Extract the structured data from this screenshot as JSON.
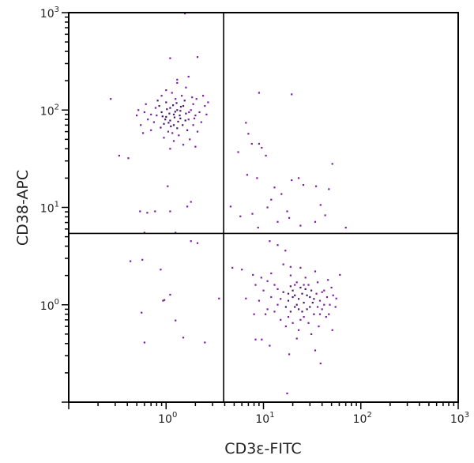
{
  "chart_data": {
    "type": "scatter",
    "title": "",
    "xlabel": "CD3ε-FITC",
    "ylabel": "CD38-APC",
    "xscale": "log",
    "yscale": "log",
    "xlim": [
      0.1,
      1000
    ],
    "ylim": [
      0.1,
      1000
    ],
    "x_ticks": [
      {
        "base": "10",
        "exp": "0",
        "value": 1
      },
      {
        "base": "10",
        "exp": "1",
        "value": 10
      },
      {
        "base": "10",
        "exp": "2",
        "value": 100
      },
      {
        "base": "10",
        "exp": "3",
        "value": 1000
      }
    ],
    "y_ticks": [
      {
        "base": "10",
        "exp": "0",
        "value": 1
      },
      {
        "base": "10",
        "exp": "1",
        "value": 10
      },
      {
        "base": "10",
        "exp": "2",
        "value": 100
      },
      {
        "base": "10",
        "exp": "3",
        "value": 1000
      }
    ],
    "grid": false,
    "point_color": "#7b1fa2",
    "dense_point_color": "#4a1670",
    "quadrant_gates": {
      "x": 3.9,
      "y": 5.4
    },
    "points": [
      [
        1.0,
        85
      ],
      [
        1.2,
        90
      ],
      [
        1.1,
        78
      ],
      [
        1.3,
        100
      ],
      [
        0.9,
        95
      ],
      [
        1.4,
        82
      ],
      [
        1.5,
        110
      ],
      [
        1.2,
        70
      ],
      [
        1.0,
        120
      ],
      [
        0.8,
        88
      ],
      [
        1.6,
        92
      ],
      [
        1.3,
        65
      ],
      [
        1.1,
        105
      ],
      [
        0.95,
        72
      ],
      [
        1.25,
        130
      ],
      [
        1.7,
        80
      ],
      [
        0.7,
        90
      ],
      [
        0.75,
        75
      ],
      [
        1.8,
        100
      ],
      [
        2.0,
        88
      ],
      [
        2.2,
        95
      ],
      [
        2.5,
        110
      ],
      [
        1.9,
        70
      ],
      [
        1.05,
        60
      ],
      [
        1.35,
        55
      ],
      [
        0.85,
        110
      ],
      [
        0.65,
        80
      ],
      [
        0.6,
        95
      ],
      [
        1.45,
        140
      ],
      [
        1.15,
        150
      ],
      [
        1.0,
        160
      ],
      [
        1.6,
        170
      ],
      [
        1.3,
        190
      ],
      [
        0.9,
        140
      ],
      [
        2.4,
        140
      ],
      [
        2.7,
        120
      ],
      [
        2.3,
        75
      ],
      [
        2.1,
        60
      ],
      [
        1.75,
        50
      ],
      [
        1.2,
        48
      ],
      [
        0.95,
        52
      ],
      [
        0.7,
        62
      ],
      [
        0.55,
        70
      ],
      [
        0.5,
        88
      ],
      [
        0.52,
        100
      ],
      [
        0.62,
        115
      ],
      [
        1.55,
        125
      ],
      [
        1.4,
        98
      ],
      [
        1.22,
        84
      ],
      [
        1.08,
        92
      ],
      [
        0.98,
        80
      ],
      [
        1.33,
        76
      ],
      [
        1.18,
        112
      ],
      [
        1.48,
        70
      ],
      [
        1.65,
        62
      ],
      [
        0.88,
        66
      ],
      [
        0.78,
        105
      ],
      [
        1.9,
        115
      ],
      [
        2.05,
        130
      ],
      [
        1.28,
        118
      ],
      [
        1.12,
        68
      ],
      [
        1.38,
        88
      ],
      [
        1.02,
        102
      ],
      [
        0.92,
        86
      ],
      [
        1.58,
        78
      ],
      [
        1.72,
        95
      ],
      [
        1.24,
        96
      ],
      [
        1.06,
        74
      ],
      [
        1.42,
        108
      ],
      [
        1.16,
        58
      ],
      [
        1.85,
        135
      ],
      [
        2.6,
        90
      ],
      [
        0.58,
        58
      ],
      [
        1.5,
        44
      ],
      [
        1.1,
        40
      ],
      [
        2.0,
        42
      ],
      [
        1.3,
        205
      ],
      [
        1.7,
        220
      ],
      [
        0.82,
        125
      ],
      [
        1.95,
        82
      ],
      [
        20,
        1.2
      ],
      [
        22,
        1.0
      ],
      [
        25,
        1.3
      ],
      [
        18,
        1.1
      ],
      [
        28,
        0.9
      ],
      [
        30,
        1.2
      ],
      [
        24,
        1.5
      ],
      [
        19,
        0.85
      ],
      [
        21,
        1.6
      ],
      [
        26,
        0.75
      ],
      [
        32,
        1.05
      ],
      [
        35,
        1.3
      ],
      [
        16,
        1.35
      ],
      [
        14,
        1.0
      ],
      [
        12,
        1.2
      ],
      [
        11,
        0.9
      ],
      [
        15,
        0.7
      ],
      [
        17,
        0.6
      ],
      [
        23,
        0.55
      ],
      [
        29,
        0.65
      ],
      [
        33,
        0.8
      ],
      [
        38,
        1.1
      ],
      [
        40,
        0.9
      ],
      [
        42,
        1.4
      ],
      [
        45,
        1.2
      ],
      [
        36,
        1.7
      ],
      [
        27,
        1.9
      ],
      [
        19,
        2.0
      ],
      [
        13,
        1.6
      ],
      [
        10,
        1.4
      ],
      [
        9,
        1.1
      ],
      [
        10.5,
        0.8
      ],
      [
        22,
        0.45
      ],
      [
        31,
        0.5
      ],
      [
        37,
        0.6
      ],
      [
        44,
        0.75
      ],
      [
        48,
        1.0
      ],
      [
        50,
        1.5
      ],
      [
        46,
        1.8
      ],
      [
        34,
        2.2
      ],
      [
        24,
        2.4
      ],
      [
        16,
        2.6
      ],
      [
        12,
        2.1
      ],
      [
        20,
        1.4
      ],
      [
        23,
        1.15
      ],
      [
        26,
        1.05
      ],
      [
        21,
        0.95
      ],
      [
        18,
        1.3
      ],
      [
        25,
        0.85
      ],
      [
        28,
        1.25
      ],
      [
        30,
        0.95
      ],
      [
        19,
        1.55
      ],
      [
        22,
        1.7
      ],
      [
        27,
        1.45
      ],
      [
        17,
        0.95
      ],
      [
        15,
        1.15
      ],
      [
        33,
        1.15
      ],
      [
        36,
        0.95
      ],
      [
        24,
        0.7
      ],
      [
        20,
        0.65
      ],
      [
        13,
        0.85
      ],
      [
        40,
        1.35
      ],
      [
        29,
        1.6
      ],
      [
        21,
        1.25
      ],
      [
        23,
        0.9
      ],
      [
        26,
        1.6
      ],
      [
        31,
        1.4
      ],
      [
        18,
        0.75
      ],
      [
        14,
        1.45
      ],
      [
        38,
        0.8
      ],
      [
        42,
        1.0
      ],
      [
        11,
        1.75
      ],
      [
        9.5,
        1.9
      ],
      [
        52,
        1.25
      ],
      [
        55,
        0.95
      ],
      [
        1.56,
        980
      ],
      [
        0.27,
        130
      ],
      [
        1.1,
        340
      ],
      [
        2.1,
        350
      ],
      [
        0.33,
        34
      ],
      [
        0.41,
        32
      ],
      [
        0.54,
        9.1
      ],
      [
        0.64,
        8.8
      ],
      [
        0.77,
        9.1
      ],
      [
        1.04,
        16.5
      ],
      [
        1.1,
        9.1
      ],
      [
        1.65,
        10.2
      ],
      [
        1.8,
        11.4
      ],
      [
        0.6,
        5.5
      ],
      [
        1.25,
        5.5
      ],
      [
        1.8,
        4.5
      ],
      [
        2.1,
        4.3
      ],
      [
        0.57,
        2.9
      ],
      [
        0.43,
        2.8
      ],
      [
        0.88,
        2.3
      ],
      [
        0.96,
        1.12
      ],
      [
        1.1,
        1.27
      ],
      [
        0.56,
        0.83
      ],
      [
        0.93,
        1.1
      ],
      [
        1.25,
        0.69
      ],
      [
        1.5,
        0.46
      ],
      [
        0.6,
        0.41
      ],
      [
        2.5,
        0.41
      ],
      [
        3.5,
        1.16
      ],
      [
        9,
        150
      ],
      [
        19.5,
        145
      ],
      [
        6.6,
        74
      ],
      [
        7,
        57
      ],
      [
        7.6,
        45
      ],
      [
        9,
        45
      ],
      [
        9.6,
        41
      ],
      [
        5.5,
        37
      ],
      [
        10.6,
        34
      ],
      [
        6.8,
        21.6
      ],
      [
        8.6,
        20
      ],
      [
        13,
        16
      ],
      [
        12,
        12
      ],
      [
        15.3,
        13.7
      ],
      [
        19.5,
        19
      ],
      [
        23,
        20
      ],
      [
        25.7,
        17
      ],
      [
        34.7,
        16.5
      ],
      [
        51,
        28
      ],
      [
        38.6,
        10.6
      ],
      [
        43,
        8.3
      ],
      [
        47,
        15.4
      ],
      [
        11,
        10
      ],
      [
        7.7,
        8.6
      ],
      [
        5.8,
        8.1
      ],
      [
        4.6,
        10.2
      ],
      [
        8.8,
        6.2
      ],
      [
        14,
        7.1
      ],
      [
        18.4,
        7.8
      ],
      [
        24,
        6.5
      ],
      [
        34,
        7.1
      ],
      [
        70,
        6.2
      ],
      [
        17.5,
        9.1
      ],
      [
        4.8,
        2.4
      ],
      [
        6,
        2.3
      ],
      [
        7.8,
        2.03
      ],
      [
        8.3,
        1.6
      ],
      [
        11.6,
        4.5
      ],
      [
        14,
        4.1
      ],
      [
        16.8,
        3.6
      ],
      [
        19,
        2.45
      ],
      [
        61,
        2.03
      ],
      [
        56,
        1.16
      ],
      [
        51,
        0.55
      ],
      [
        8.3,
        0.44
      ],
      [
        9.6,
        0.44
      ],
      [
        11.6,
        0.38
      ],
      [
        18.4,
        0.31
      ],
      [
        34,
        0.34
      ],
      [
        38.6,
        0.25
      ],
      [
        17.5,
        0.123
      ],
      [
        8,
        0.8
      ],
      [
        6.6,
        1.16
      ],
      [
        47,
        0.8
      ]
    ]
  }
}
